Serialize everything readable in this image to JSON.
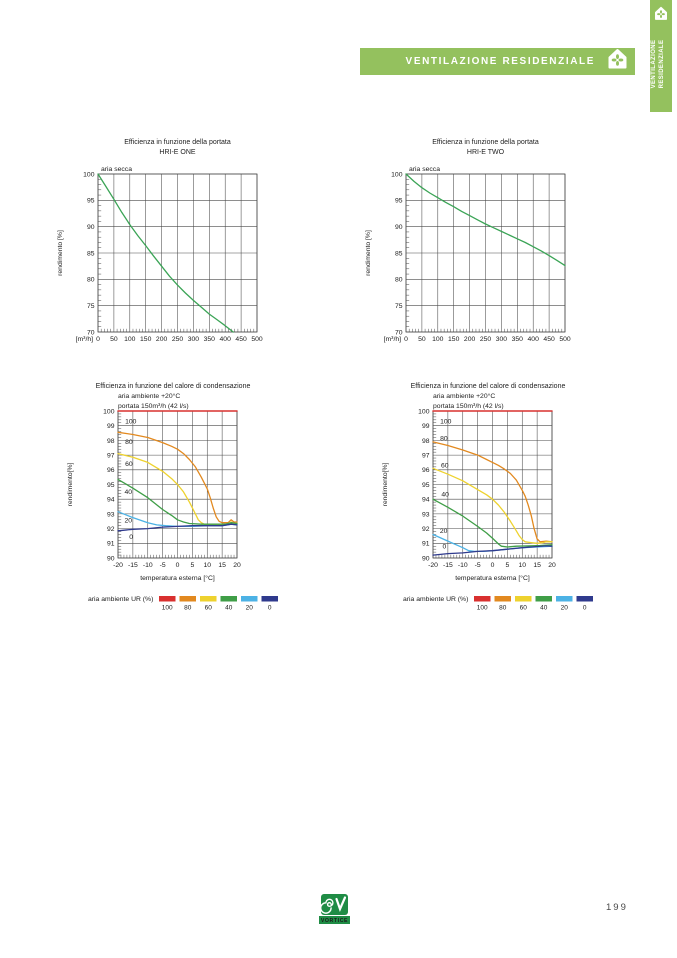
{
  "colors": {
    "accent": "#94c15e",
    "grid": "#4a4a4a",
    "logo_green": "#1f8c45"
  },
  "header": {
    "banner_label": "VENTILAZIONE RESIDENZIALE",
    "tab_line1": "VENTILAZIONE",
    "tab_line2": "RESIDENZIALE"
  },
  "footer": {
    "logo_text": "VORTICE",
    "page_number": "199"
  },
  "chart_data": [
    {
      "id": "hri-e-one-portata",
      "type": "line",
      "variant": "portata",
      "title": "Efficienza in funzione della portata",
      "subtitle": "HRI-E ONE",
      "inline_label": "aria secca",
      "xlabel": "[m³/h]",
      "ylabel": "rendimento [%]",
      "xlim": [
        0,
        500
      ],
      "ylim": [
        70,
        100
      ],
      "x_major": 50,
      "x_minor": 10,
      "y_major": 5,
      "y_minor": 1,
      "series": [
        {
          "name": "aria secca",
          "color": "#3ba456",
          "points": [
            [
              0,
              100
            ],
            [
              25,
              97.6
            ],
            [
              50,
              95.2
            ],
            [
              75,
              92.7
            ],
            [
              100,
              90.4
            ],
            [
              125,
              88.3
            ],
            [
              150,
              86.4
            ],
            [
              175,
              84.4
            ],
            [
              200,
              82.5
            ],
            [
              225,
              80.6
            ],
            [
              250,
              78.9
            ],
            [
              275,
              77.4
            ],
            [
              300,
              76
            ],
            [
              325,
              74.7
            ],
            [
              350,
              73.4
            ],
            [
              375,
              72.3
            ],
            [
              400,
              71.2
            ],
            [
              425,
              70
            ]
          ]
        }
      ]
    },
    {
      "id": "hri-e-two-portata",
      "type": "line",
      "variant": "portata",
      "title": "Efficienza in funzione della portata",
      "subtitle": "HRI-E TWO",
      "inline_label": "aria secca",
      "xlabel": "[m³/h]",
      "ylabel": "rendimento [%]",
      "xlim": [
        0,
        500
      ],
      "ylim": [
        70,
        100
      ],
      "x_major": 50,
      "x_minor": 10,
      "y_major": 5,
      "y_minor": 1,
      "series": [
        {
          "name": "aria secca",
          "color": "#3ba456",
          "points": [
            [
              0,
              100
            ],
            [
              25,
              98.6
            ],
            [
              50,
              97.4
            ],
            [
              75,
              96.4
            ],
            [
              100,
              95.5
            ],
            [
              125,
              94.6
            ],
            [
              150,
              93.8
            ],
            [
              175,
              92.9
            ],
            [
              200,
              92.1
            ],
            [
              225,
              91.3
            ],
            [
              250,
              90.5
            ],
            [
              275,
              89.8
            ],
            [
              300,
              89.1
            ],
            [
              325,
              88.4
            ],
            [
              350,
              87.7
            ],
            [
              375,
              87
            ],
            [
              400,
              86.2
            ],
            [
              425,
              85.4
            ],
            [
              450,
              84.5
            ],
            [
              475,
              83.6
            ],
            [
              500,
              82.6
            ]
          ]
        }
      ]
    },
    {
      "id": "hri-e-one-condensazione",
      "type": "line",
      "variant": "condensazione",
      "title": "Efficienza in funzione del calore di condensazione",
      "subtitle_line1": "aria ambiente +20°C",
      "subtitle_line2": "portata 150m³/h (42 l/s)",
      "xlabel": "temperatura esterna [°C]",
      "ylabel": "rendimento[%]",
      "xlim": [
        -20,
        20
      ],
      "ylim": [
        90,
        100
      ],
      "x_major": 5,
      "x_minor": 1,
      "y_major": 1,
      "y_minor": 0.2,
      "legend_label": "aria ambiente UR (%)",
      "series": [
        {
          "name": "100",
          "color": "#d9302f",
          "label_pos": [
            -17.6,
            99.3
          ],
          "points": [
            [
              -20,
              100
            ],
            [
              20,
              100
            ]
          ]
        },
        {
          "name": "80",
          "color": "#e2891f",
          "label_pos": [
            -17.6,
            97.9
          ],
          "points": [
            [
              -20,
              98.55
            ],
            [
              -15,
              98.4
            ],
            [
              -10,
              98.2
            ],
            [
              -5,
              97.85
            ],
            [
              -2,
              97.6
            ],
            [
              0,
              97.4
            ],
            [
              2,
              97.1
            ],
            [
              4,
              96.7
            ],
            [
              6,
              96.2
            ],
            [
              8,
              95.5
            ],
            [
              10,
              94.7
            ],
            [
              11,
              94.1
            ],
            [
              12,
              93.4
            ],
            [
              13,
              92.8
            ],
            [
              14,
              92.5
            ],
            [
              15,
              92.4
            ],
            [
              17,
              92.4
            ],
            [
              18,
              92.6
            ],
            [
              19,
              92.45
            ],
            [
              20,
              92.45
            ]
          ]
        },
        {
          "name": "60",
          "color": "#eed22e",
          "label_pos": [
            -17.6,
            96.4
          ],
          "points": [
            [
              -20,
              97.1
            ],
            [
              -15,
              96.85
            ],
            [
              -10,
              96.5
            ],
            [
              -5,
              95.9
            ],
            [
              -2,
              95.4
            ],
            [
              0,
              95
            ],
            [
              2,
              94.5
            ],
            [
              4,
              93.8
            ],
            [
              6,
              93
            ],
            [
              7,
              92.6
            ],
            [
              8,
              92.4
            ],
            [
              9,
              92.3
            ],
            [
              12,
              92.3
            ],
            [
              15,
              92.3
            ],
            [
              17,
              92.3
            ],
            [
              18,
              92.45
            ],
            [
              19,
              92.35
            ],
            [
              20,
              92.35
            ]
          ]
        },
        {
          "name": "40",
          "color": "#3f9e47",
          "label_pos": [
            -17.8,
            94.5
          ],
          "points": [
            [
              -20,
              95.35
            ],
            [
              -15,
              94.75
            ],
            [
              -10,
              94.1
            ],
            [
              -5,
              93.3
            ],
            [
              -2,
              92.9
            ],
            [
              0,
              92.6
            ],
            [
              2,
              92.45
            ],
            [
              4,
              92.35
            ],
            [
              8,
              92.3
            ],
            [
              12,
              92.3
            ],
            [
              16,
              92.3
            ],
            [
              18,
              92.4
            ],
            [
              20,
              92.35
            ]
          ]
        },
        {
          "name": "20",
          "color": "#4cb2e5",
          "label_pos": [
            -17.8,
            92.55
          ],
          "points": [
            [
              -20,
              93.15
            ],
            [
              -15,
              92.75
            ],
            [
              -10,
              92.4
            ],
            [
              -7,
              92.25
            ],
            [
              -4,
              92.2
            ],
            [
              0,
              92.15
            ],
            [
              5,
              92.15
            ],
            [
              10,
              92.2
            ],
            [
              15,
              92.2
            ],
            [
              18,
              92.3
            ],
            [
              20,
              92.25
            ]
          ]
        },
        {
          "name": "0",
          "color": "#2f3a8d",
          "label_pos": [
            -16.2,
            91.45
          ],
          "points": [
            [
              -20,
              91.85
            ],
            [
              -15,
              91.95
            ],
            [
              -10,
              92
            ],
            [
              -5,
              92.1
            ],
            [
              0,
              92.15
            ],
            [
              5,
              92.2
            ],
            [
              10,
              92.2
            ],
            [
              15,
              92.2
            ],
            [
              18,
              92.3
            ],
            [
              20,
              92.25
            ]
          ]
        }
      ]
    },
    {
      "id": "hri-e-two-condensazione",
      "type": "line",
      "variant": "condensazione",
      "title": "Efficienza in funzione del calore di condensazione",
      "subtitle_line1": "aria ambiente +20°C",
      "subtitle_line2": "portata 150m³/h (42 l/s)",
      "xlabel": "temperatura esterna [°C]",
      "ylabel": "rendimento[%]",
      "xlim": [
        -20,
        20
      ],
      "ylim": [
        90,
        100
      ],
      "x_major": 5,
      "x_minor": 1,
      "y_major": 1,
      "y_minor": 0.2,
      "legend_label": "aria ambiente UR (%)",
      "series": [
        {
          "name": "100",
          "color": "#d9302f",
          "label_pos": [
            -17.6,
            99.3
          ],
          "points": [
            [
              -20,
              100
            ],
            [
              20,
              100
            ]
          ]
        },
        {
          "name": "80",
          "color": "#e2891f",
          "label_pos": [
            -17.6,
            98.15
          ],
          "points": [
            [
              -20,
              97.9
            ],
            [
              -15,
              97.65
            ],
            [
              -10,
              97.35
            ],
            [
              -5,
              97
            ],
            [
              -2,
              96.7
            ],
            [
              0,
              96.5
            ],
            [
              2,
              96.3
            ],
            [
              4,
              96.05
            ],
            [
              6,
              95.75
            ],
            [
              8,
              95.3
            ],
            [
              10,
              94.6
            ],
            [
              11,
              94.2
            ],
            [
              12,
              93.6
            ],
            [
              13,
              92.9
            ],
            [
              14,
              92
            ],
            [
              15,
              91.3
            ],
            [
              16,
              91.1
            ],
            [
              18,
              91.15
            ],
            [
              20,
              91.1
            ]
          ]
        },
        {
          "name": "60",
          "color": "#eed22e",
          "label_pos": [
            -17.3,
            96.3
          ],
          "points": [
            [
              -20,
              96.1
            ],
            [
              -15,
              95.7
            ],
            [
              -10,
              95.25
            ],
            [
              -5,
              94.65
            ],
            [
              -2,
              94.3
            ],
            [
              0,
              94
            ],
            [
              2,
              93.6
            ],
            [
              4,
              93.1
            ],
            [
              6,
              92.5
            ],
            [
              8,
              91.85
            ],
            [
              9,
              91.5
            ],
            [
              10,
              91.25
            ],
            [
              11,
              91.1
            ],
            [
              13,
              91.05
            ],
            [
              15,
              91
            ],
            [
              17,
              91.05
            ],
            [
              18,
              91.1
            ],
            [
              20,
              91.1
            ]
          ]
        },
        {
          "name": "40",
          "color": "#3f9e47",
          "label_pos": [
            -17.2,
            94.35
          ],
          "points": [
            [
              -20,
              94
            ],
            [
              -15,
              93.45
            ],
            [
              -10,
              92.85
            ],
            [
              -5,
              92.15
            ],
            [
              -2,
              91.7
            ],
            [
              0,
              91.35
            ],
            [
              1,
              91.15
            ],
            [
              2,
              90.95
            ],
            [
              3,
              90.8
            ],
            [
              5,
              90.75
            ],
            [
              8,
              90.8
            ],
            [
              12,
              90.82
            ],
            [
              16,
              90.85
            ],
            [
              20,
              90.9
            ]
          ]
        },
        {
          "name": "20",
          "color": "#4cb2e5",
          "label_pos": [
            -17.7,
            91.85
          ],
          "points": [
            [
              -20,
              91.6
            ],
            [
              -15,
              91.15
            ],
            [
              -10,
              90.7
            ],
            [
              -8,
              90.5
            ],
            [
              -6,
              90.45
            ],
            [
              -3,
              90.45
            ],
            [
              0,
              90.5
            ],
            [
              5,
              90.6
            ],
            [
              10,
              90.7
            ],
            [
              15,
              90.75
            ],
            [
              20,
              90.8
            ]
          ]
        },
        {
          "name": "0",
          "color": "#2f3a8d",
          "label_pos": [
            -16.8,
            90.8
          ],
          "points": [
            [
              -20,
              90.2
            ],
            [
              -15,
              90.3
            ],
            [
              -10,
              90.35
            ],
            [
              -5,
              90.45
            ],
            [
              0,
              90.5
            ],
            [
              5,
              90.6
            ],
            [
              10,
              90.7
            ],
            [
              15,
              90.78
            ],
            [
              18,
              90.82
            ],
            [
              20,
              90.8
            ]
          ]
        }
      ]
    }
  ]
}
